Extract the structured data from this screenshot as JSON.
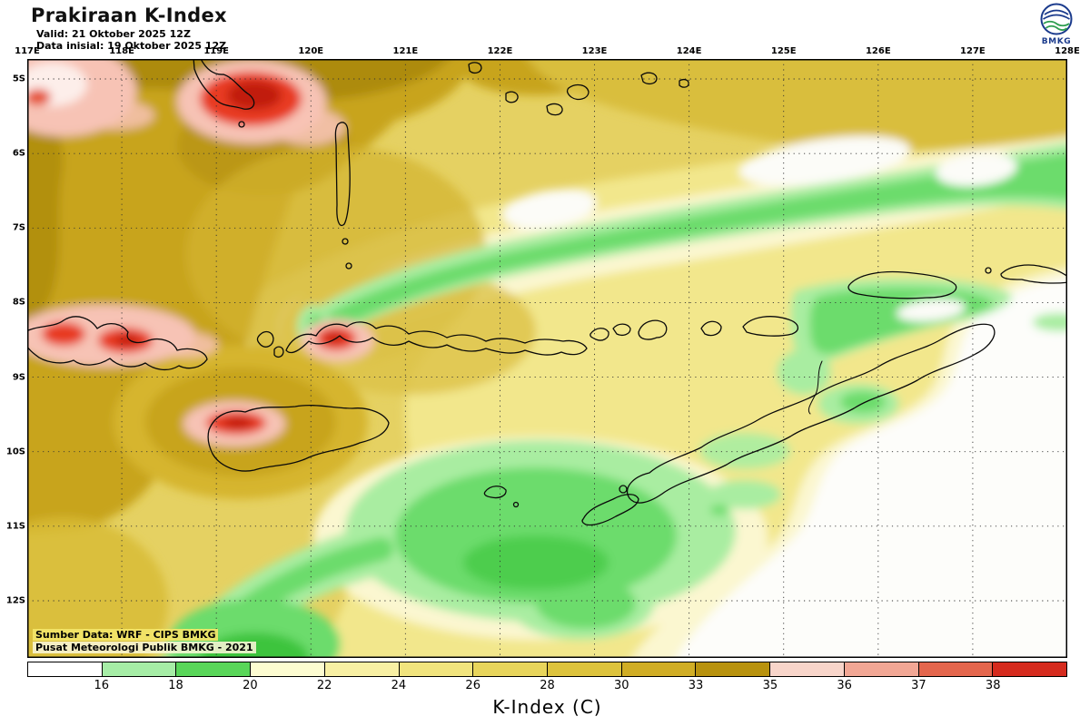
{
  "header": {
    "title": "Prakiraan K-Index",
    "valid_line": "Valid: 21 Oktober 2025 12Z",
    "init_line": "Data inisial: 19 Oktober 2025 12Z",
    "logo_text": "BMKG"
  },
  "map": {
    "lon_ticks": [
      "117E",
      "118E",
      "119E",
      "120E",
      "121E",
      "122E",
      "123E",
      "124E",
      "125E",
      "126E",
      "127E",
      "128E"
    ],
    "lat_ticks": [
      "5S",
      "6S",
      "7S",
      "8S",
      "9S",
      "10S",
      "11S",
      "12S"
    ],
    "source_line1": "Sumber Data: WRF - CIPS BMKG",
    "source_line2": "Pusat Meteorologi Publik BMKG - 2021"
  },
  "colorbar": {
    "axis_label": "K-Index (C)",
    "labels": [
      "16",
      "18",
      "20",
      "22",
      "24",
      "26",
      "28",
      "30",
      "33",
      "35",
      "36",
      "37",
      "38"
    ],
    "colors": [
      "#ffffff",
      "#a6eda6",
      "#59d659",
      "#fdfcd1",
      "#f8f0a4",
      "#f1e47e",
      "#e8d55c",
      "#ddc33d",
      "#d0ad25",
      "#b8920e",
      "#f8d5ca",
      "#f2a795",
      "#e4664d",
      "#d52b1e"
    ]
  },
  "chart_data": {
    "type": "heatmap",
    "title": "Prakiraan K-Index",
    "valid_time": "21 Oktober 2025 12Z",
    "initial_time": "19 Oktober 2025 12Z",
    "x_axis": {
      "ticks": [
        "117E",
        "118E",
        "119E",
        "120E",
        "121E",
        "122E",
        "123E",
        "124E",
        "125E",
        "126E",
        "127E",
        "128E"
      ]
    },
    "y_axis": {
      "ticks": [
        "5S",
        "6S",
        "7S",
        "8S",
        "9S",
        "10S",
        "11S",
        "12S"
      ]
    },
    "legend_label": "K-Index (C)",
    "scale_breaks": [
      16,
      18,
      20,
      22,
      24,
      26,
      28,
      30,
      33,
      35,
      36,
      37,
      38
    ],
    "scale_colors": [
      "#ffffff",
      "#a6eda6",
      "#59d659",
      "#fdfcd1",
      "#f8f0a4",
      "#f1e47e",
      "#e8d55c",
      "#ddc33d",
      "#d0ad25",
      "#b8920e",
      "#f8d5ca",
      "#f2a795",
      "#e4664d",
      "#d52b1e"
    ],
    "regions": [
      {
        "value_range": "30-35",
        "description": "Dark gold maximum over the northwest sector (117E-121E, 5S-8S) and around Sumba"
      },
      {
        "value_range": ">35",
        "description": "Red local maxima near 119.3E 5.3S, 117E-118.3E 8.7S, 120.2E 8.6S and 119.2E 10.1S"
      },
      {
        "value_range": "16-20",
        "description": "Green band from about 120.3E 7.7S northeastward to 128E 6S, along the north Timor coast, and over 119E-123E 10.5S-12.5S"
      },
      {
        "value_range": "<16",
        "description": "White minimum over the southeast quadrant (roughly 123E-128E, 9S-12.5S)"
      }
    ]
  }
}
